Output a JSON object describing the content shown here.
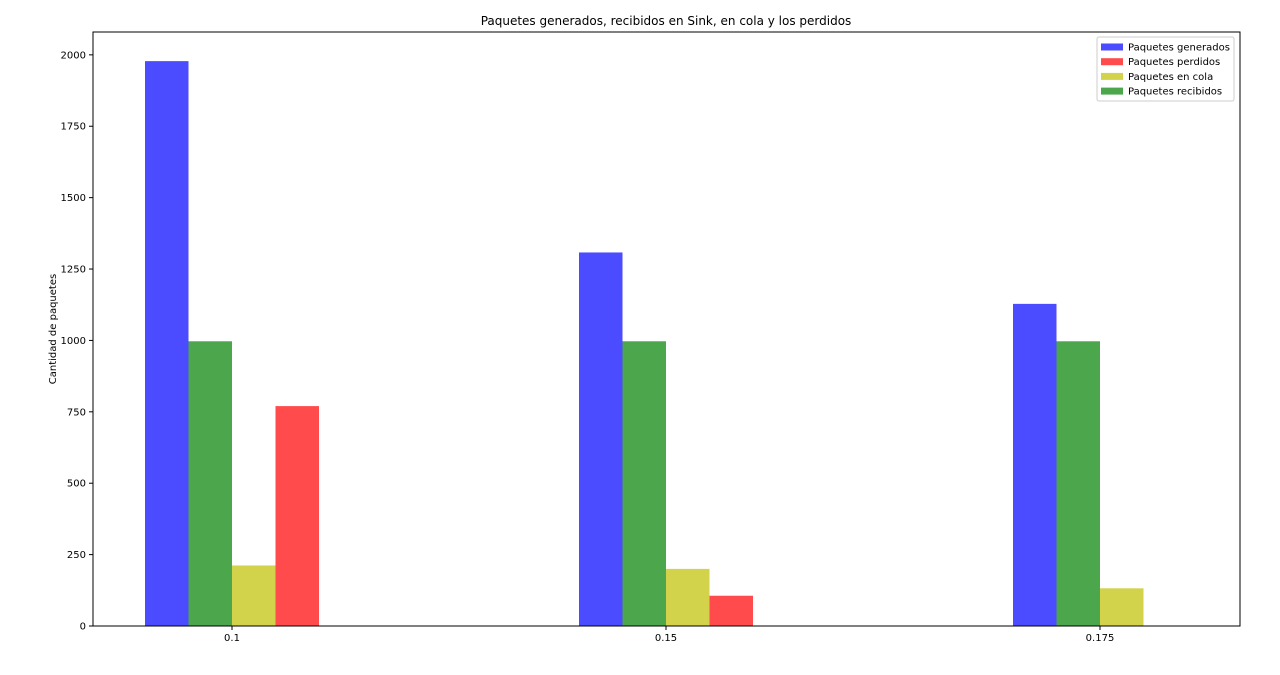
{
  "chart_data": {
    "type": "bar",
    "title": "Paquetes generados, recibidos en Sink, en cola y los perdidos",
    "xlabel": "",
    "ylabel": "Cantidad de paquetes",
    "categories": [
      "0.1",
      "0.15",
      "0.175"
    ],
    "ylim": [
      0,
      2080
    ],
    "yticks": [
      0,
      250,
      500,
      750,
      1000,
      1250,
      1500,
      1750,
      2000
    ],
    "ytick_labels": [
      "0",
      "250",
      "500",
      "750",
      "1000",
      "1250",
      "1500",
      "1750",
      "2000"
    ],
    "grid": false,
    "legend_position": "top-right",
    "series": [
      {
        "name": "Paquetes generados",
        "color": "#4b4bff",
        "values": [
          1978,
          1308,
          1128
        ]
      },
      {
        "name": "Paquetes recibidos",
        "color": "#4ca64c",
        "values": [
          997,
          997,
          997
        ]
      },
      {
        "name": "Paquetes en cola",
        "color": "#d3d34b",
        "values": [
          212,
          200,
          132
        ]
      },
      {
        "name": "Paquetes perdidos",
        "color": "#ff4b4b",
        "values": [
          770,
          106,
          0
        ]
      }
    ],
    "legend_order": [
      "Paquetes generados",
      "Paquetes perdidos",
      "Paquetes en cola",
      "Paquetes recibidos"
    ]
  }
}
